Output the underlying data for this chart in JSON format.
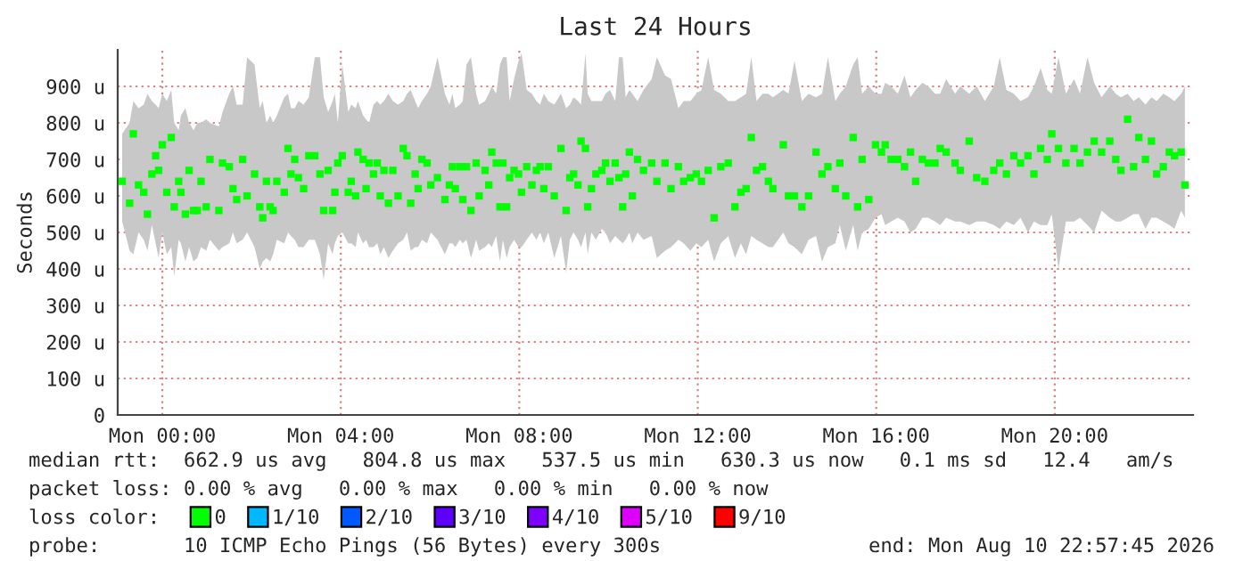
{
  "chart_data": {
    "type": "scatter",
    "title": "Last 24 Hours",
    "ylabel": "Seconds",
    "legend_title": "loss color:",
    "annotations": [
      "median rtt:  662.9 us avg   804.8 us max   537.5 us min   630.3 us now   0.1 ms sd   12.4   am/s",
      "packet loss: 0.00 % avg   0.00 % max   0.00 % min   0.00 % now",
      "probe:       10 ICMP Echo Pings (56 Bytes) every 300s",
      "end: Mon Aug 10 22:57:45 2026"
    ],
    "xlim": [
      "2026-08-09T23:00",
      "2026-08-10T23:06"
    ],
    "ylim": [
      0,
      1000
    ],
    "xticks": [
      {
        "value": "2026-08-10T00:00",
        "label": "Mon 00:00"
      },
      {
        "value": "2026-08-10T04:00",
        "label": "Mon 04:00"
      },
      {
        "value": "2026-08-10T08:00",
        "label": "Mon 08:00"
      },
      {
        "value": "2026-08-10T12:00",
        "label": "Mon 12:00"
      },
      {
        "value": "2026-08-10T16:00",
        "label": "Mon 16:00"
      },
      {
        "value": "2026-08-10T20:00",
        "label": "Mon 20:00"
      }
    ],
    "yticks": [
      0,
      {
        "value": 100,
        "label": "100 u"
      },
      {
        "value": 200,
        "label": "200 u"
      },
      {
        "value": 300,
        "label": "300 u"
      },
      {
        "value": 400,
        "label": "400 u"
      },
      {
        "value": 500,
        "label": "500 u"
      },
      {
        "value": 600,
        "label": "600 u"
      },
      {
        "value": 700,
        "label": "700 u"
      },
      {
        "value": 800,
        "label": "800 u"
      },
      {
        "value": 900,
        "label": "900 u"
      }
    ],
    "grid": true,
    "legend": "bottom",
    "marker": "square",
    "series": [
      {
        "name": "0",
        "color": "#00ff00",
        "x": [
          "2026-08-09T23:06",
          "2026-08-09T23:16",
          "2026-08-09T23:21",
          "2026-08-09T23:28",
          "2026-08-09T23:35",
          "2026-08-09T23:40",
          "2026-08-09T23:46",
          "2026-08-09T23:51",
          "2026-08-09T23:55",
          "2026-08-10T00:00",
          "2026-08-10T00:06",
          "2026-08-10T00:12",
          "2026-08-10T00:16",
          "2026-08-10T00:22",
          "2026-08-10T00:25",
          "2026-08-10T00:31",
          "2026-08-10T00:36",
          "2026-08-10T00:42",
          "2026-08-10T00:47",
          "2026-08-10T00:52",
          "2026-08-10T00:59",
          "2026-08-10T01:04",
          "2026-08-10T01:16",
          "2026-08-10T01:21",
          "2026-08-10T01:30",
          "2026-08-10T01:35",
          "2026-08-10T01:40",
          "2026-08-10T01:48",
          "2026-08-10T01:54",
          "2026-08-10T02:04",
          "2026-08-10T02:11",
          "2026-08-10T02:15",
          "2026-08-10T02:20",
          "2026-08-10T02:25",
          "2026-08-10T02:29",
          "2026-08-10T02:34",
          "2026-08-10T02:44",
          "2026-08-10T02:49",
          "2026-08-10T02:53",
          "2026-08-10T02:58",
          "2026-08-10T03:03",
          "2026-08-10T03:10",
          "2026-08-10T03:17",
          "2026-08-10T03:25",
          "2026-08-10T03:32",
          "2026-08-10T03:37",
          "2026-08-10T03:43",
          "2026-08-10T03:49",
          "2026-08-10T03:52",
          "2026-08-10T03:56",
          "2026-08-10T04:02",
          "2026-08-10T04:10",
          "2026-08-10T04:14",
          "2026-08-10T04:20",
          "2026-08-10T04:23",
          "2026-08-10T04:30",
          "2026-08-10T04:34",
          "2026-08-10T04:38",
          "2026-08-10T04:44",
          "2026-08-10T04:49",
          "2026-08-10T04:53",
          "2026-08-10T04:58",
          "2026-08-10T05:04",
          "2026-08-10T05:10",
          "2026-08-10T05:17",
          "2026-08-10T05:24",
          "2026-08-10T05:29",
          "2026-08-10T05:34",
          "2026-08-10T05:40",
          "2026-08-10T05:44",
          "2026-08-10T05:49",
          "2026-08-10T05:56",
          "2026-08-10T06:01",
          "2026-08-10T06:10",
          "2026-08-10T06:20",
          "2026-08-10T06:26",
          "2026-08-10T06:30",
          "2026-08-10T06:34",
          "2026-08-10T06:40",
          "2026-08-10T06:44",
          "2026-08-10T06:49",
          "2026-08-10T06:55",
          "2026-08-10T07:02",
          "2026-08-10T07:06",
          "2026-08-10T07:14",
          "2026-08-10T07:19",
          "2026-08-10T07:23",
          "2026-08-10T07:29",
          "2026-08-10T07:34",
          "2026-08-10T07:38",
          "2026-08-10T07:43",
          "2026-08-10T07:47",
          "2026-08-10T07:53",
          "2026-08-10T07:59",
          "2026-08-10T08:03",
          "2026-08-10T08:10",
          "2026-08-10T08:17",
          "2026-08-10T08:23",
          "2026-08-10T08:28",
          "2026-08-10T08:33",
          "2026-08-10T08:39",
          "2026-08-10T08:47",
          "2026-08-10T08:56",
          "2026-08-10T09:03",
          "2026-08-10T09:08",
          "2026-08-10T09:13",
          "2026-08-10T09:19",
          "2026-08-10T09:23",
          "2026-08-10T09:29",
          "2026-08-10T09:32",
          "2026-08-10T09:37",
          "2026-08-10T09:43",
          "2026-08-10T09:51",
          "2026-08-10T09:56",
          "2026-08-10T10:02",
          "2026-08-10T10:09",
          "2026-08-10T10:14",
          "2026-08-10T10:19",
          "2026-08-10T10:23",
          "2026-08-10T10:28",
          "2026-08-10T10:32",
          "2026-08-10T10:39",
          "2026-08-10T10:47",
          "2026-08-10T10:58",
          "2026-08-10T11:05",
          "2026-08-10T11:16",
          "2026-08-10T11:24",
          "2026-08-10T11:34",
          "2026-08-10T11:41",
          "2026-08-10T11:50",
          "2026-08-10T11:58",
          "2026-08-10T12:05",
          "2026-08-10T12:14",
          "2026-08-10T12:22",
          "2026-08-10T12:31",
          "2026-08-10T12:41",
          "2026-08-10T12:50",
          "2026-08-10T12:58",
          "2026-08-10T13:05",
          "2026-08-10T13:12",
          "2026-08-10T13:19",
          "2026-08-10T13:27",
          "2026-08-10T13:35",
          "2026-08-10T13:41",
          "2026-08-10T13:55",
          "2026-08-10T14:02",
          "2026-08-10T14:10",
          "2026-08-10T14:20",
          "2026-08-10T14:29",
          "2026-08-10T14:39",
          "2026-08-10T14:47",
          "2026-08-10T14:55",
          "2026-08-10T15:05",
          "2026-08-10T15:11",
          "2026-08-10T15:19",
          "2026-08-10T15:29",
          "2026-08-10T15:35",
          "2026-08-10T15:41",
          "2026-08-10T15:50",
          "2026-08-10T15:59",
          "2026-08-10T16:07",
          "2026-08-10T16:12",
          "2026-08-10T16:20",
          "2026-08-10T16:29",
          "2026-08-10T16:38",
          "2026-08-10T16:46",
          "2026-08-10T16:53",
          "2026-08-10T17:02",
          "2026-08-10T17:10",
          "2026-08-10T17:19",
          "2026-08-10T17:26",
          "2026-08-10T17:34",
          "2026-08-10T17:46",
          "2026-08-10T17:53",
          "2026-08-10T18:05",
          "2026-08-10T18:15",
          "2026-08-10T18:26",
          "2026-08-10T18:38",
          "2026-08-10T18:46",
          "2026-08-10T18:55",
          "2026-08-10T19:05",
          "2026-08-10T19:14",
          "2026-08-10T19:24",
          "2026-08-10T19:32",
          "2026-08-10T19:41",
          "2026-08-10T19:50",
          "2026-08-10T19:56",
          "2026-08-10T20:05",
          "2026-08-10T20:15",
          "2026-08-10T20:26",
          "2026-08-10T20:34",
          "2026-08-10T20:44",
          "2026-08-10T20:53",
          "2026-08-10T21:03",
          "2026-08-10T21:14",
          "2026-08-10T21:22",
          "2026-08-10T21:29",
          "2026-08-10T21:38",
          "2026-08-10T21:46",
          "2026-08-10T21:53",
          "2026-08-10T22:02",
          "2026-08-10T22:10",
          "2026-08-10T22:17",
          "2026-08-10T22:26",
          "2026-08-10T22:34",
          "2026-08-10T22:41",
          "2026-08-10T22:50",
          "2026-08-10T22:55"
        ],
        "values": [
          640,
          580,
          770,
          630,
          610,
          550,
          660,
          710,
          670,
          740,
          610,
          760,
          570,
          640,
          610,
          550,
          670,
          560,
          560,
          640,
          570,
          700,
          560,
          690,
          680,
          620,
          590,
          700,
          600,
          660,
          570,
          540,
          640,
          570,
          560,
          640,
          610,
          730,
          660,
          700,
          650,
          620,
          710,
          710,
          660,
          560,
          670,
          560,
          610,
          690,
          710,
          610,
          640,
          600,
          720,
          700,
          620,
          690,
          660,
          690,
          600,
          670,
          580,
          670,
          600,
          730,
          710,
          580,
          660,
          620,
          700,
          690,
          630,
          650,
          590,
          630,
          680,
          620,
          680,
          590,
          680,
          560,
          690,
          600,
          670,
          630,
          720,
          690,
          570,
          690,
          570,
          650,
          670,
          660,
          610,
          680,
          630,
          670,
          680,
          620,
          680,
          600,
          730,
          560,
          650,
          660,
          630,
          750,
          730,
          570,
          620,
          660,
          670,
          690,
          640,
          690,
          650,
          570,
          660,
          720,
          600,
          700,
          670,
          690,
          640,
          690,
          620,
          680,
          640,
          650,
          660,
          640,
          670,
          540,
          680,
          690,
          570,
          610,
          620,
          760,
          670,
          680,
          640,
          620,
          740,
          600,
          600,
          570,
          600,
          720,
          660,
          680,
          620,
          690,
          600,
          760,
          570,
          700,
          590,
          740,
          720,
          740,
          700,
          700,
          680,
          720,
          640,
          700,
          690,
          690,
          730,
          720,
          690,
          670,
          750,
          650,
          640,
          670,
          690,
          660,
          710,
          690,
          710,
          660,
          730,
          700,
          770,
          730,
          690,
          730,
          690,
          720,
          750,
          720,
          750,
          700,
          670,
          810,
          680,
          760,
          700,
          750,
          660,
          680,
          720,
          710,
          720,
          630
        ],
        "lower": [
          530,
          450,
          440,
          500,
          480,
          450,
          520,
          470,
          430,
          500,
          440,
          460,
          380,
          480,
          470,
          420,
          460,
          420,
          430,
          460,
          450,
          480,
          450,
          460,
          470,
          500,
          470,
          480,
          500,
          460,
          400,
          420,
          430,
          420,
          440,
          480,
          470,
          500,
          490,
          480,
          460,
          460,
          480,
          480,
          440,
          370,
          470,
          440,
          470,
          490,
          500,
          470,
          470,
          460,
          500,
          470,
          480,
          460,
          460,
          470,
          440,
          460,
          430,
          450,
          470,
          480,
          500,
          450,
          460,
          460,
          480,
          470,
          500,
          480,
          440,
          470,
          470,
          460,
          480,
          470,
          480,
          430,
          480,
          450,
          460,
          470,
          460,
          490,
          420,
          480,
          430,
          460,
          480,
          460,
          460,
          480,
          500,
          480,
          500,
          470,
          500,
          430,
          490,
          390,
          480,
          500,
          480,
          460,
          500,
          440,
          500,
          480,
          510,
          500,
          470,
          490,
          480,
          470,
          480,
          500,
          470,
          500,
          480,
          490,
          430,
          450,
          460,
          480,
          470,
          450,
          470,
          460,
          480,
          420,
          470,
          490,
          430,
          470,
          440,
          490,
          480,
          470,
          460,
          460,
          500,
          470,
          460,
          440,
          480,
          490,
          420,
          460,
          470,
          520,
          450,
          520,
          450,
          500,
          510,
          540,
          550,
          520,
          530,
          540,
          530,
          500,
          510,
          540,
          540,
          530,
          520,
          540,
          530,
          530,
          520,
          530,
          530,
          520,
          510,
          530,
          520,
          540,
          500,
          530,
          520,
          520,
          550,
          400,
          530,
          530,
          540,
          520,
          500,
          560,
          540,
          530,
          530,
          540,
          550,
          550,
          510,
          540,
          540,
          530,
          520,
          510,
          560,
          540
        ],
        "upper": [
          770,
          800,
          860,
          840,
          850,
          880,
          860,
          850,
          840,
          880,
          860,
          890,
          800,
          780,
          820,
          840,
          800,
          780,
          800,
          800,
          810,
          800,
          790,
          830,
          880,
          900,
          850,
          850,
          980,
          960,
          840,
          860,
          800,
          820,
          800,
          820,
          870,
          880,
          840,
          840,
          860,
          850,
          870,
          980,
          980,
          870,
          830,
          860,
          880,
          800,
          960,
          830,
          850,
          840,
          860,
          820,
          810,
          800,
          850,
          860,
          850,
          860,
          880,
          860,
          850,
          860,
          880,
          890,
          860,
          840,
          860,
          880,
          900,
          980,
          880,
          850,
          880,
          840,
          850,
          860,
          960,
          980,
          880,
          850,
          860,
          880,
          900,
          880,
          960,
          980,
          980,
          860,
          920,
          970,
          990,
          890,
          880,
          860,
          850,
          880,
          860,
          850,
          880,
          840,
          850,
          870,
          860,
          850,
          990,
          880,
          860,
          860,
          860,
          880,
          890,
          860,
          980,
          980,
          870,
          890,
          880,
          860,
          890,
          920,
          980,
          930,
          920,
          840,
          860,
          860,
          880,
          890,
          980,
          890,
          880,
          860,
          860,
          870,
          880,
          980,
          860,
          880,
          880,
          870,
          890,
          880,
          970,
          860,
          880,
          870,
          880,
          980,
          860,
          880,
          900,
          960,
          980,
          880,
          900,
          880,
          880,
          910,
          900,
          880,
          930,
          870,
          890,
          910,
          900,
          880,
          880,
          920,
          880,
          900,
          880,
          900,
          860,
          900,
          980,
          890,
          880,
          860,
          870,
          900,
          950,
          890,
          880,
          980,
          880,
          920,
          880,
          980,
          910,
          870,
          900,
          880,
          870,
          880,
          860,
          870,
          850,
          870,
          860,
          880,
          870,
          860,
          880,
          900
        ]
      },
      {
        "name": "1/10",
        "color": "#00b8ff"
      },
      {
        "name": "2/10",
        "color": "#0059ff"
      },
      {
        "name": "3/10",
        "color": "#5e00ff"
      },
      {
        "name": "4/10",
        "color": "#7e00ff"
      },
      {
        "name": "5/10",
        "color": "#dd00ff"
      },
      {
        "name": "9/10",
        "color": "#ff0000"
      }
    ]
  }
}
